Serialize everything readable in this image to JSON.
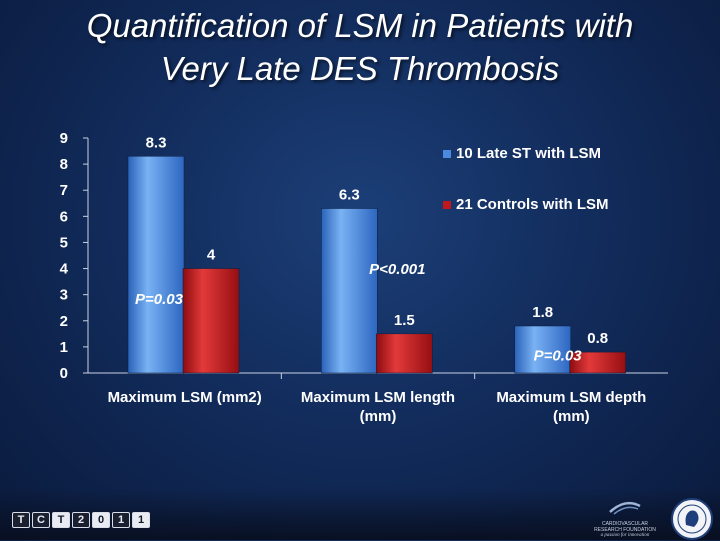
{
  "slide": {
    "title_line1": "Quantification of LSM in Patients with",
    "title_line2": "Very Late DES Thrombosis"
  },
  "chart_data": {
    "type": "bar",
    "title": "Quantification of LSM in Patients with Very Late DES Thrombosis",
    "categories": [
      "Maximum LSM (mm2)",
      "Maximum LSM length (mm)",
      "Maximum LSM depth (mm)"
    ],
    "category_lines": [
      [
        "Maximum LSM (mm2)"
      ],
      [
        "Maximum LSM length",
        "(mm)"
      ],
      [
        "Maximum LSM depth",
        "(mm)"
      ]
    ],
    "series": [
      {
        "name": "10 Late ST with LSM",
        "values": [
          8.3,
          6.3,
          1.8
        ],
        "value_labels": [
          "8.3",
          "6.3",
          "1.8"
        ],
        "color": "#4a8be0"
      },
      {
        "name": "21 Controls with LSM",
        "values": [
          4,
          1.5,
          0.8
        ],
        "value_labels": [
          "4",
          "1.5",
          "0.8"
        ],
        "color": "#c0181c"
      }
    ],
    "p_values": [
      "P=0.03",
      "P<0.001",
      "P=0.03"
    ],
    "yticks": [
      "0",
      "1",
      "2",
      "3",
      "4",
      "5",
      "6",
      "7",
      "8",
      "9"
    ],
    "ylim": [
      0,
      9
    ],
    "xlabel": "",
    "ylabel": "",
    "legend_position": "right",
    "grid": false
  },
  "footer": {
    "tct_logo": [
      "T",
      "C",
      "T",
      "2",
      "0",
      "1",
      "1"
    ],
    "crf_name": "CARDIOVASCULAR RESEARCH FOUNDATION",
    "crf_tagline": "a passion for innovation",
    "seal_icon": "crf-seal-icon"
  },
  "colors": {
    "background": "#122c5c",
    "blue_series": "#4a8be0",
    "red_series": "#c0181c",
    "text": "#ffffff"
  }
}
